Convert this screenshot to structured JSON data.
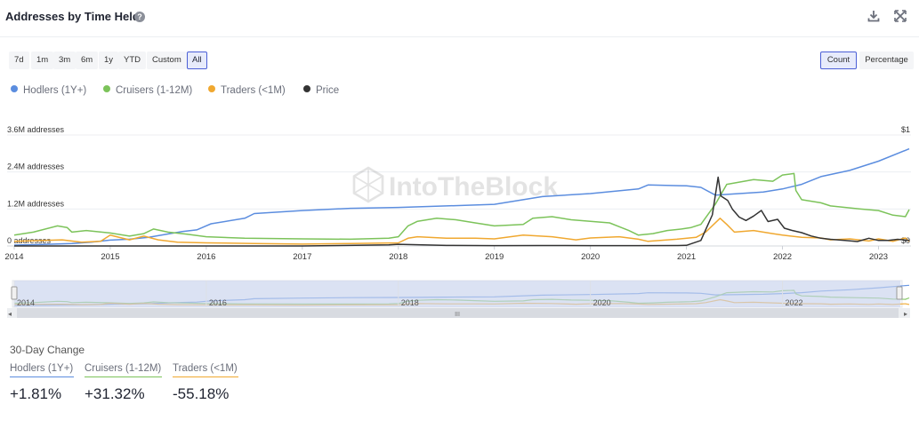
{
  "header": {
    "title": "Addresses by Time Held"
  },
  "icons": {
    "help": "help-icon",
    "download": "download-icon",
    "fullscreen": "fullscreen-icon"
  },
  "range_buttons": [
    {
      "label": "7d",
      "active": false
    },
    {
      "label": "1m",
      "active": false
    },
    {
      "label": "3m",
      "active": false
    },
    {
      "label": "6m",
      "active": false
    },
    {
      "label": "1y",
      "active": false
    },
    {
      "label": "YTD",
      "active": false
    },
    {
      "label": "Custom",
      "active": false
    },
    {
      "label": "All",
      "active": true
    }
  ],
  "mode_buttons": [
    {
      "label": "Count",
      "active": true
    },
    {
      "label": "Percentage",
      "active": false
    }
  ],
  "watermark": "IntoTheBlock",
  "navigator": {
    "scroll_grip": "III"
  },
  "chart_data": {
    "type": "line",
    "title": "Addresses by Time Held",
    "x_tick_labels": [
      "2014",
      "2015",
      "2016",
      "2017",
      "2018",
      "2019",
      "2020",
      "2021",
      "2022",
      "2023"
    ],
    "navigator_tick_labels": [
      "2014",
      "2016",
      "2018",
      "2020",
      "2022"
    ],
    "x_range": [
      2014.0,
      2023.32
    ],
    "left_axis": {
      "ticks": [
        "0 addresses",
        "1.2M addresses",
        "2.4M addresses",
        "3.6M addresses"
      ],
      "range": [
        0,
        3600000
      ]
    },
    "right_axis": {
      "ticks": [
        "$0",
        "$1"
      ],
      "range": [
        0,
        1
      ]
    },
    "grid": true,
    "legend_position": "top-left",
    "series": [
      {
        "name": "Hodlers (1Y+)",
        "color": "#5b8ddf",
        "axis": "left",
        "points": [
          [
            2014.0,
            30000
          ],
          [
            2014.3,
            50000
          ],
          [
            2014.6,
            80000
          ],
          [
            2014.8,
            120000
          ],
          [
            2015.0,
            190000
          ],
          [
            2015.2,
            220000
          ],
          [
            2015.4,
            280000
          ],
          [
            2015.6,
            390000
          ],
          [
            2015.75,
            470000
          ],
          [
            2015.9,
            520000
          ],
          [
            2016.05,
            720000
          ],
          [
            2016.4,
            900000
          ],
          [
            2016.5,
            1050000
          ],
          [
            2017.0,
            1150000
          ],
          [
            2017.5,
            1220000
          ],
          [
            2018.0,
            1250000
          ],
          [
            2018.5,
            1300000
          ],
          [
            2019.0,
            1350000
          ],
          [
            2019.5,
            1600000
          ],
          [
            2020.0,
            1700000
          ],
          [
            2020.5,
            1850000
          ],
          [
            2020.6,
            1980000
          ],
          [
            2021.0,
            1950000
          ],
          [
            2021.15,
            1900000
          ],
          [
            2021.3,
            1650000
          ],
          [
            2021.8,
            1750000
          ],
          [
            2022.0,
            1850000
          ],
          [
            2022.2,
            2000000
          ],
          [
            2022.4,
            2250000
          ],
          [
            2022.7,
            2450000
          ],
          [
            2023.0,
            2750000
          ],
          [
            2023.32,
            3150000
          ]
        ]
      },
      {
        "name": "Cruisers (1-12M)",
        "color": "#7cc35a",
        "axis": "left",
        "points": [
          [
            2014.0,
            350000
          ],
          [
            2014.2,
            450000
          ],
          [
            2014.45,
            650000
          ],
          [
            2014.55,
            600000
          ],
          [
            2014.6,
            450000
          ],
          [
            2014.75,
            500000
          ],
          [
            2015.0,
            420000
          ],
          [
            2015.2,
            320000
          ],
          [
            2015.35,
            400000
          ],
          [
            2015.45,
            550000
          ],
          [
            2015.6,
            450000
          ],
          [
            2015.8,
            380000
          ],
          [
            2016.0,
            300000
          ],
          [
            2016.4,
            250000
          ],
          [
            2017.0,
            230000
          ],
          [
            2017.5,
            220000
          ],
          [
            2017.9,
            250000
          ],
          [
            2018.0,
            300000
          ],
          [
            2018.1,
            650000
          ],
          [
            2018.2,
            800000
          ],
          [
            2018.4,
            900000
          ],
          [
            2018.6,
            850000
          ],
          [
            2018.8,
            750000
          ],
          [
            2019.0,
            650000
          ],
          [
            2019.3,
            700000
          ],
          [
            2019.4,
            900000
          ],
          [
            2019.6,
            950000
          ],
          [
            2019.8,
            850000
          ],
          [
            2020.0,
            800000
          ],
          [
            2020.2,
            750000
          ],
          [
            2020.4,
            500000
          ],
          [
            2020.5,
            350000
          ],
          [
            2020.65,
            400000
          ],
          [
            2020.8,
            500000
          ],
          [
            2020.95,
            550000
          ],
          [
            2021.05,
            600000
          ],
          [
            2021.15,
            700000
          ],
          [
            2021.3,
            1350000
          ],
          [
            2021.42,
            2000000
          ],
          [
            2021.7,
            2150000
          ],
          [
            2021.9,
            2100000
          ],
          [
            2022.0,
            2300000
          ],
          [
            2022.12,
            2350000
          ],
          [
            2022.14,
            1800000
          ],
          [
            2022.2,
            1500000
          ],
          [
            2022.4,
            1400000
          ],
          [
            2022.5,
            1300000
          ],
          [
            2022.8,
            1200000
          ],
          [
            2023.0,
            1150000
          ],
          [
            2023.15,
            1000000
          ],
          [
            2023.28,
            950000
          ],
          [
            2023.32,
            1180000
          ]
        ]
      },
      {
        "name": "Traders (<1M)",
        "color": "#f0a830",
        "axis": "left",
        "points": [
          [
            2014.0,
            150000
          ],
          [
            2014.3,
            180000
          ],
          [
            2014.5,
            200000
          ],
          [
            2014.7,
            120000
          ],
          [
            2014.9,
            150000
          ],
          [
            2015.0,
            350000
          ],
          [
            2015.2,
            200000
          ],
          [
            2015.35,
            320000
          ],
          [
            2015.5,
            200000
          ],
          [
            2015.7,
            120000
          ],
          [
            2016.0,
            100000
          ],
          [
            2016.5,
            80000
          ],
          [
            2017.0,
            60000
          ],
          [
            2017.5,
            80000
          ],
          [
            2018.0,
            100000
          ],
          [
            2018.1,
            250000
          ],
          [
            2018.2,
            300000
          ],
          [
            2018.5,
            250000
          ],
          [
            2018.8,
            250000
          ],
          [
            2019.0,
            230000
          ],
          [
            2019.3,
            350000
          ],
          [
            2019.6,
            300000
          ],
          [
            2019.85,
            200000
          ],
          [
            2020.0,
            260000
          ],
          [
            2020.3,
            300000
          ],
          [
            2020.5,
            220000
          ],
          [
            2020.6,
            150000
          ],
          [
            2020.9,
            220000
          ],
          [
            2021.1,
            280000
          ],
          [
            2021.2,
            450000
          ],
          [
            2021.35,
            900000
          ],
          [
            2021.42,
            700000
          ],
          [
            2021.5,
            450000
          ],
          [
            2021.7,
            500000
          ],
          [
            2021.9,
            400000
          ],
          [
            2022.0,
            350000
          ],
          [
            2022.2,
            280000
          ],
          [
            2022.4,
            260000
          ],
          [
            2022.5,
            200000
          ],
          [
            2022.7,
            230000
          ],
          [
            2022.9,
            160000
          ],
          [
            2023.0,
            230000
          ],
          [
            2023.15,
            150000
          ],
          [
            2023.28,
            260000
          ],
          [
            2023.32,
            150000
          ]
        ]
      },
      {
        "name": "Price",
        "color": "#333333",
        "axis": "right",
        "points": [
          [
            2014.0,
            0.0
          ],
          [
            2017.0,
            0.0
          ],
          [
            2017.9,
            0.01
          ],
          [
            2018.0,
            0.015
          ],
          [
            2018.5,
            0.005
          ],
          [
            2019.0,
            0.003
          ],
          [
            2019.5,
            0.004
          ],
          [
            2020.0,
            0.003
          ],
          [
            2020.5,
            0.003
          ],
          [
            2020.9,
            0.004
          ],
          [
            2021.0,
            0.006
          ],
          [
            2021.15,
            0.05
          ],
          [
            2021.27,
            0.28
          ],
          [
            2021.33,
            0.62
          ],
          [
            2021.36,
            0.45
          ],
          [
            2021.43,
            0.41
          ],
          [
            2021.48,
            0.33
          ],
          [
            2021.55,
            0.26
          ],
          [
            2021.62,
            0.23
          ],
          [
            2021.7,
            0.27
          ],
          [
            2021.78,
            0.32
          ],
          [
            2021.85,
            0.22
          ],
          [
            2021.95,
            0.24
          ],
          [
            2022.02,
            0.16
          ],
          [
            2022.1,
            0.14
          ],
          [
            2022.2,
            0.12
          ],
          [
            2022.3,
            0.09
          ],
          [
            2022.4,
            0.07
          ],
          [
            2022.5,
            0.06
          ],
          [
            2022.65,
            0.05
          ],
          [
            2022.78,
            0.04
          ],
          [
            2022.9,
            0.07
          ],
          [
            2023.0,
            0.05
          ],
          [
            2023.1,
            0.05
          ],
          [
            2023.2,
            0.06
          ],
          [
            2023.32,
            0.05
          ]
        ]
      }
    ]
  },
  "change": {
    "title": "30-Day Change",
    "items": [
      {
        "label": "Hodlers (1Y+)",
        "value": "+1.81%",
        "color": "#5b8ddf"
      },
      {
        "label": "Cruisers (1-12M)",
        "value": "+31.32%",
        "color": "#7cc35a"
      },
      {
        "label": "Traders (<1M)",
        "value": "-55.18%",
        "color": "#f0a830"
      }
    ]
  }
}
